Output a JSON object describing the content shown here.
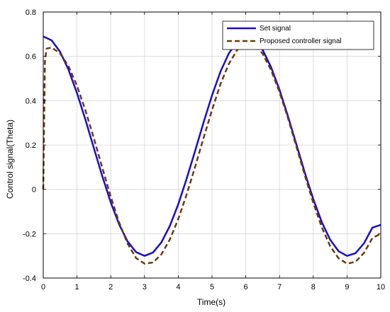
{
  "chart_data": {
    "type": "line",
    "title": "",
    "xlabel": "Time(s)",
    "ylabel": "Control signal(Theta)",
    "xlim": [
      0,
      10
    ],
    "ylim": [
      -0.4,
      0.8
    ],
    "xticks": [
      0,
      1,
      2,
      3,
      4,
      5,
      6,
      7,
      8,
      9,
      10
    ],
    "yticks": [
      -0.4,
      -0.2,
      0,
      0.2,
      0.4,
      0.6,
      0.8
    ],
    "xtick_labels": [
      "0",
      "1",
      "2",
      "3",
      "4",
      "5",
      "6",
      "7",
      "8",
      "9",
      "10"
    ],
    "ytick_labels": [
      "-0.4",
      "-0.2",
      "0",
      "0.2",
      "0.4",
      "0.6",
      "0.8"
    ],
    "grid": true,
    "legend": "top-right",
    "series": [
      {
        "name": "Set signal",
        "color": "#1a0dcc",
        "style": "solid",
        "x": [
          0,
          0.25,
          0.5,
          0.75,
          1.0,
          1.25,
          1.5,
          1.75,
          2.0,
          2.25,
          2.5,
          2.75,
          3.0,
          3.25,
          3.5,
          3.75,
          4.0,
          4.25,
          4.5,
          4.75,
          5.0,
          5.25,
          5.5,
          5.75,
          6.0,
          6.25,
          6.5,
          6.75,
          7.0,
          7.25,
          7.5,
          7.75,
          8.0,
          8.25,
          8.5,
          8.75,
          9.0,
          9.25,
          9.5,
          9.75,
          10.0
        ],
        "values": [
          0.69,
          0.672,
          0.62,
          0.539,
          0.434,
          0.314,
          0.186,
          0.059,
          -0.059,
          -0.159,
          -0.235,
          -0.283,
          -0.3,
          -0.285,
          -0.239,
          -0.165,
          -0.067,
          0.049,
          0.174,
          0.302,
          0.424,
          0.531,
          0.614,
          0.669,
          0.69,
          0.676,
          0.629,
          0.551,
          0.449,
          0.33,
          0.203,
          0.075,
          -0.044,
          -0.147,
          -0.227,
          -0.279,
          -0.3,
          -0.288,
          -0.244,
          -0.173,
          -0.16
        ]
      },
      {
        "name": "Proposed controller signal",
        "color": "#6b3a0c",
        "style": "dashed",
        "x": [
          0,
          0.05,
          0.1,
          0.25,
          0.5,
          0.75,
          1.0,
          1.25,
          1.5,
          1.75,
          2.0,
          2.25,
          2.5,
          2.75,
          3.0,
          3.25,
          3.5,
          3.75,
          4.0,
          4.25,
          4.5,
          4.75,
          5.0,
          5.25,
          5.5,
          5.75,
          6.0,
          6.25,
          6.5,
          6.75,
          7.0,
          7.25,
          7.5,
          7.75,
          8.0,
          8.25,
          8.5,
          8.75,
          9.0,
          9.25,
          9.5,
          9.75,
          10.0
        ],
        "values": [
          0.0,
          0.58,
          0.635,
          0.64,
          0.613,
          0.555,
          0.467,
          0.356,
          0.23,
          0.097,
          -0.033,
          -0.15,
          -0.245,
          -0.31,
          -0.335,
          -0.33,
          -0.293,
          -0.226,
          -0.134,
          -0.022,
          0.102,
          0.232,
          0.358,
          0.475,
          0.567,
          0.63,
          0.66,
          0.653,
          0.612,
          0.538,
          0.439,
          0.322,
          0.193,
          0.063,
          -0.06,
          -0.17,
          -0.256,
          -0.311,
          -0.335,
          -0.327,
          -0.287,
          -0.22,
          -0.2
        ]
      }
    ]
  }
}
